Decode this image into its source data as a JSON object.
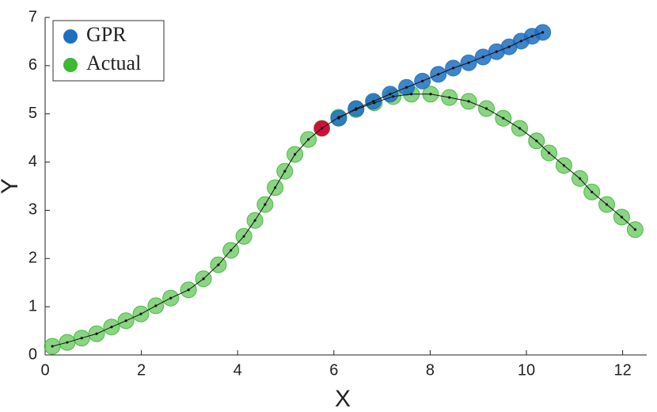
{
  "chart_data": {
    "type": "scatter",
    "x_label": "X",
    "y_label": "Y",
    "xlim": [
      0,
      12.5
    ],
    "ylim": [
      0,
      7
    ],
    "xticks": [
      0,
      2,
      4,
      6,
      8,
      10,
      12
    ],
    "yticks": [
      0,
      1,
      2,
      3,
      4,
      5,
      6,
      7
    ],
    "legend": "upper left",
    "series": [
      {
        "name": "GPR",
        "color": "#1f6fc0",
        "x": [
          6.1,
          6.46,
          6.82,
          7.17,
          7.51,
          7.84,
          8.17,
          8.48,
          8.8,
          9.1,
          9.38,
          9.64,
          9.89,
          10.12,
          10.34
        ],
        "values": [
          4.91,
          5.11,
          5.26,
          5.41,
          5.55,
          5.68,
          5.82,
          5.95,
          6.06,
          6.18,
          6.29,
          6.39,
          6.51,
          6.61,
          6.69
        ]
      },
      {
        "name": "Actual",
        "color": "#3cb832",
        "x": [
          0.15,
          0.46,
          0.76,
          1.07,
          1.38,
          1.68,
          1.99,
          2.3,
          2.61,
          2.98,
          3.29,
          3.6,
          3.86,
          4.13,
          4.36,
          4.57,
          4.78,
          4.98,
          5.19,
          5.47,
          5.75,
          6.1,
          6.46,
          6.84,
          7.23,
          7.61,
          8.01,
          8.4,
          8.8,
          9.17,
          9.52,
          9.86,
          10.21,
          10.47,
          10.78,
          11.11,
          11.36,
          11.67,
          11.98,
          12.26
        ],
        "values": [
          0.18,
          0.26,
          0.35,
          0.44,
          0.58,
          0.71,
          0.85,
          1.02,
          1.18,
          1.35,
          1.58,
          1.87,
          2.17,
          2.46,
          2.79,
          3.12,
          3.47,
          3.81,
          4.16,
          4.47,
          4.7,
          4.93,
          5.09,
          5.23,
          5.36,
          5.41,
          5.41,
          5.34,
          5.26,
          5.11,
          4.91,
          4.7,
          4.44,
          4.19,
          3.93,
          3.66,
          3.38,
          3.12,
          2.86,
          2.6
        ]
      }
    ],
    "highlight": {
      "x": 5.75,
      "y": 4.7,
      "color": "#d0103a"
    }
  }
}
